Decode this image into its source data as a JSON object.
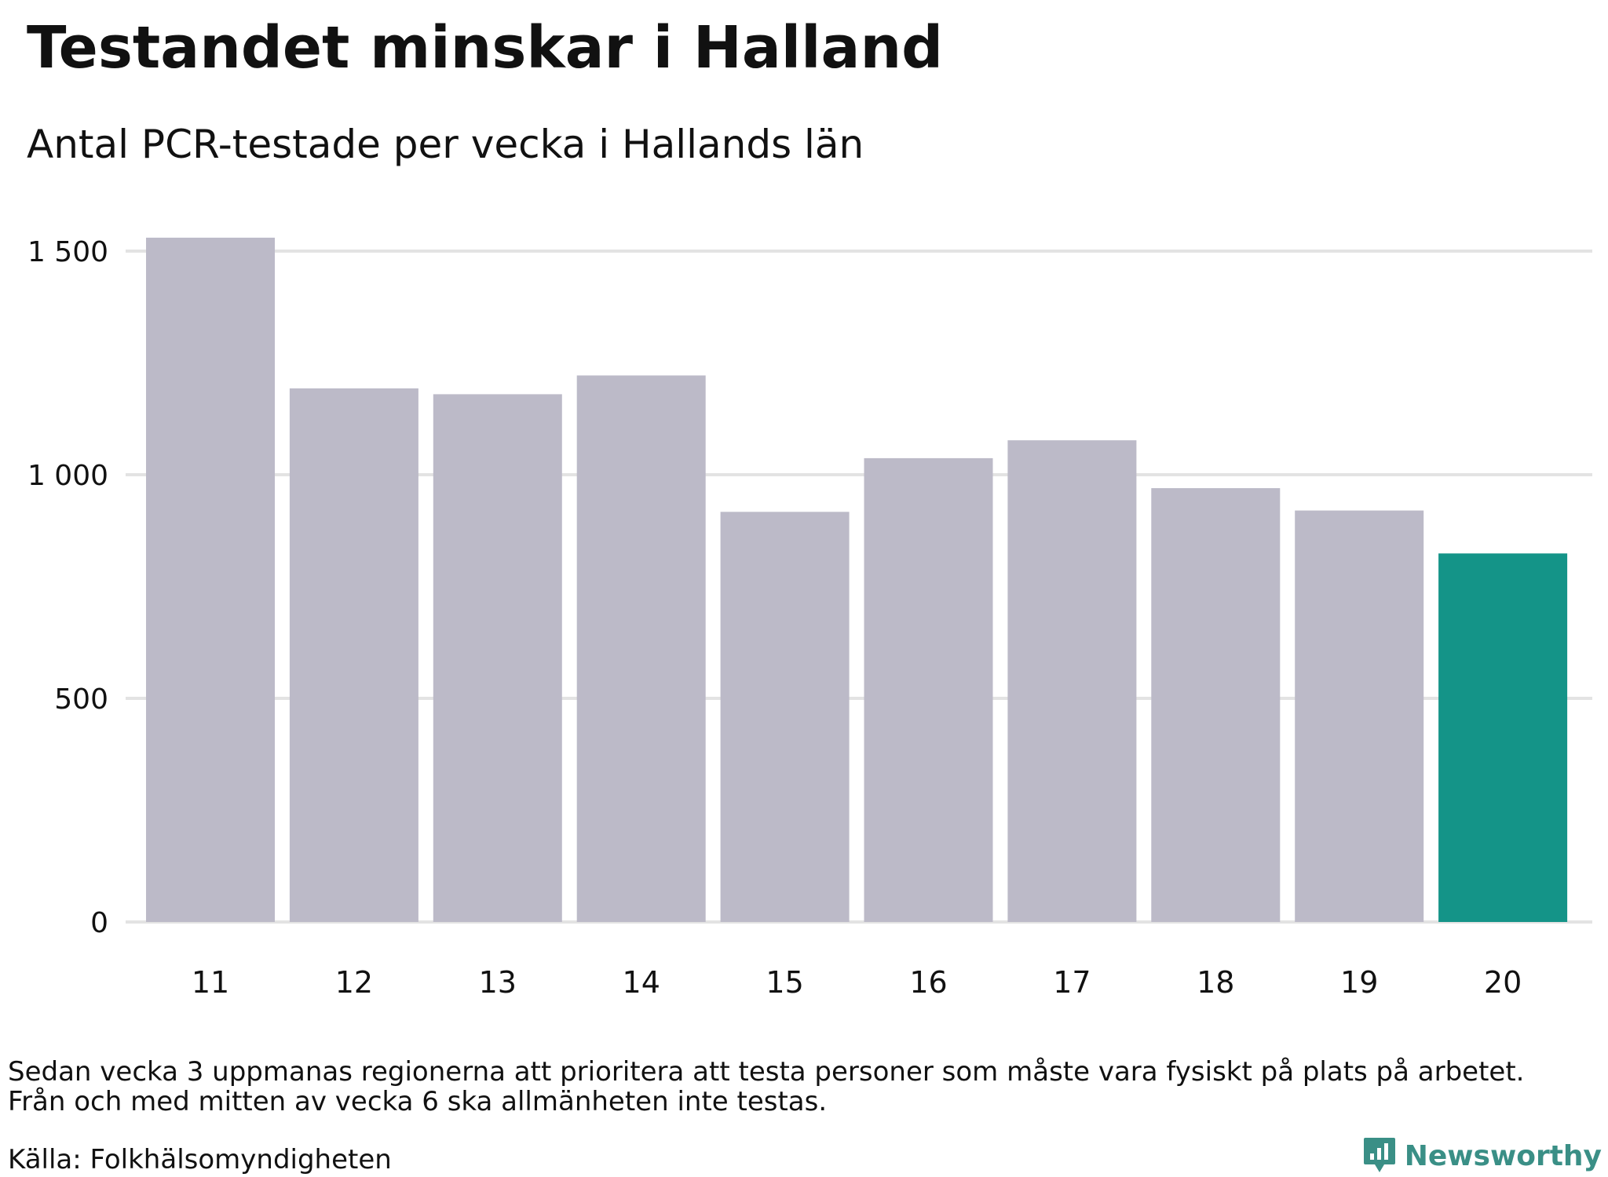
{
  "title": "Testandet minskar i Halland",
  "subtitle": "Antal PCR-testade per vecka i Hallands län",
  "notes": [
    "Sedan vecka 3 uppmanas regionerna att prioritera att testa personer som måste vara fysiskt på plats på arbetet.",
    "Från och med mitten av vecka 6 ska allmänheten inte testas."
  ],
  "source": "Källa: Folkhälsomyndigheten",
  "brand": {
    "name": "Newsworthy",
    "icon": "newsworthy-logo-icon",
    "color": "#3a8f86"
  },
  "chart_data": {
    "type": "bar",
    "title": "",
    "xlabel": "",
    "ylabel": "",
    "categories": [
      "11",
      "12",
      "13",
      "14",
      "15",
      "16",
      "17",
      "18",
      "19",
      "20"
    ],
    "values": [
      1530,
      1193,
      1180,
      1222,
      917,
      1037,
      1077,
      970,
      920,
      824
    ],
    "ylim": [
      0,
      1500
    ],
    "yticks": [
      0,
      500,
      1000,
      1500
    ],
    "ytick_labels": [
      "0",
      "500",
      "1 000",
      "1 500"
    ],
    "grid": true,
    "bar_color": "#bcbac8",
    "highlight_color": "#149488",
    "highlight_index": 9
  }
}
